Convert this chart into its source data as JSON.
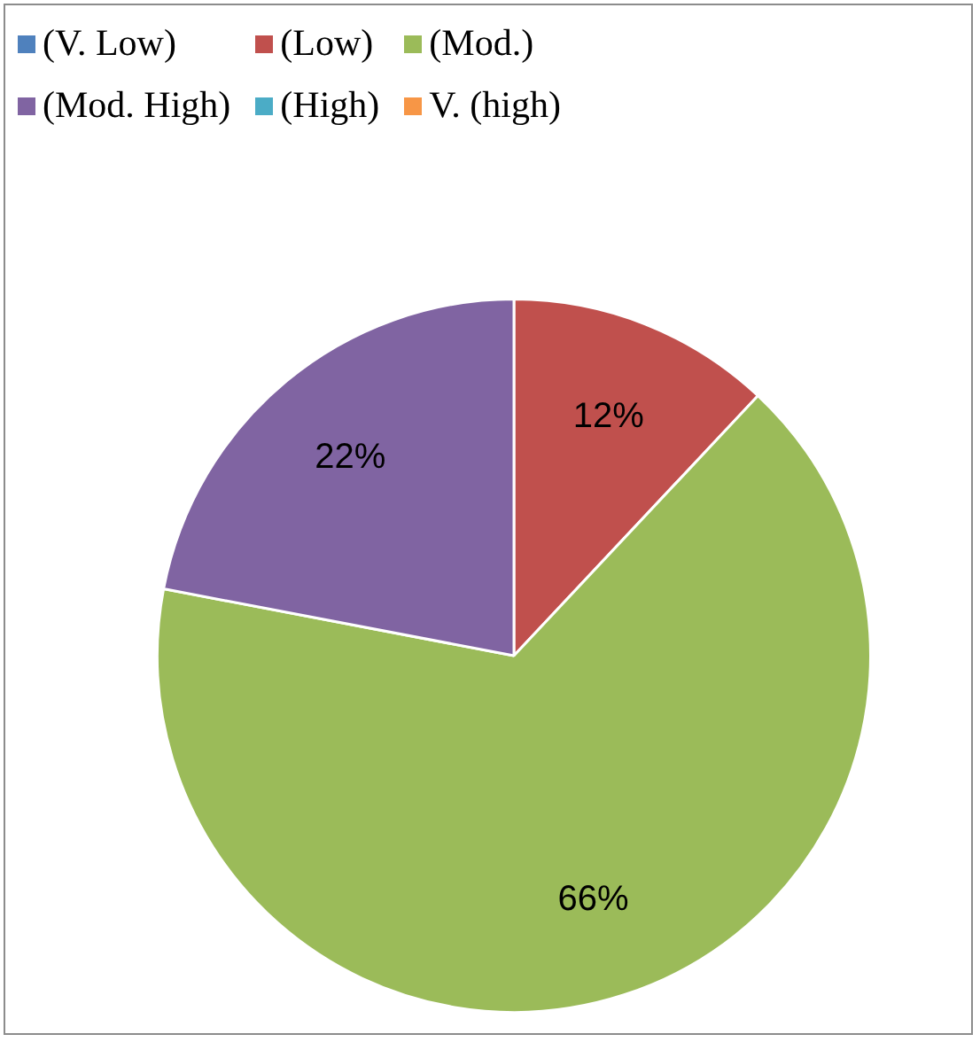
{
  "chart_data": {
    "type": "pie",
    "categories": [
      "(V. Low)",
      "(Low)",
      "(Mod.)",
      "(Mod. High)",
      "(High)",
      "V. (high)"
    ],
    "values": [
      0,
      12,
      66,
      22,
      0,
      0
    ],
    "colors": [
      "#4f81bd",
      "#c0504d",
      "#9bbb59",
      "#8064a2",
      "#4bacc6",
      "#f79646"
    ],
    "value_labels": [
      null,
      "12%",
      "66%",
      "22%",
      null,
      null
    ],
    "legend": "top"
  }
}
